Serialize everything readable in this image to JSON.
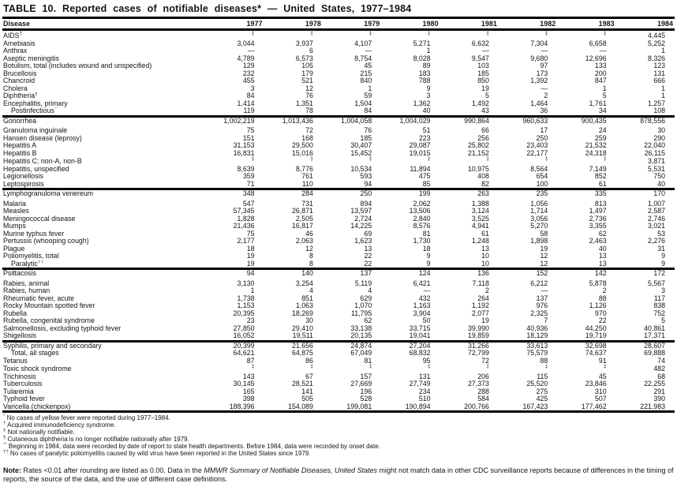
{
  "title": "TABLE 10. Reported cases of notifiable diseases* — United States, 1977–1984",
  "table": {
    "disease_header": "Disease",
    "year_headers": [
      "1977",
      "1978",
      "1979",
      "1980",
      "1981",
      "1982",
      "1983",
      "1984"
    ],
    "groups": [
      {
        "rows": [
          {
            "name": "AIDS",
            "sup": "†",
            "values": [
              "‡",
              "‡",
              "‡",
              "‡",
              "‡",
              "‡",
              "‡",
              "4,445"
            ]
          },
          {
            "name": "Amebiasis",
            "values": [
              "3,044",
              "3,937",
              "4,107",
              "5,271",
              "6,632",
              "7,304",
              "6,658",
              "5,252"
            ]
          },
          {
            "name": "Anthrax",
            "values": [
              "—",
              "6",
              "—",
              "1",
              "—",
              "—",
              "—",
              "1"
            ]
          },
          {
            "name": "Aseptic meningitis",
            "values": [
              "4,789",
              "6,573",
              "8,754",
              "8,028",
              "9,547",
              "9,680",
              "12,696",
              "8,326"
            ]
          },
          {
            "name": "Botulism, total (includes wound and unspecified)",
            "values": [
              "129",
              "105",
              "45",
              "89",
              "103",
              "97",
              "133",
              "123"
            ]
          },
          {
            "name": "Brucellosis",
            "values": [
              "232",
              "179",
              "215",
              "183",
              "185",
              "173",
              "200",
              "131"
            ]
          },
          {
            "name": "Chancroid",
            "values": [
              "455",
              "521",
              "840",
              "788",
              "850",
              "1,392",
              "847",
              "666"
            ]
          },
          {
            "name": "Cholera",
            "values": [
              "3",
              "12",
              "1",
              "9",
              "19",
              "—",
              "1",
              "1"
            ]
          },
          {
            "name": "Diphtheria",
            "sup": "¶",
            "values": [
              "84",
              "76",
              "59",
              "3",
              "5",
              "2",
              "5",
              "1"
            ]
          },
          {
            "name": "Encephalitis, primary",
            "values": [
              "1,414",
              "1,351",
              "1,504",
              "1,362",
              "1,492",
              "1,464",
              "1,761",
              "1,257"
            ]
          },
          {
            "name": "Postinfectious",
            "sup": "**",
            "indent": true,
            "values": [
              "119",
              "78",
              "84",
              "40",
              "43",
              "36",
              "34",
              "108"
            ]
          }
        ]
      },
      {
        "rows": [
          {
            "name": "Gonorrhea",
            "gap_after": true,
            "values": [
              "1,002,219",
              "1,013,436",
              "1,004,058",
              "1,004,029",
              "990,864",
              "960,633",
              "900,435",
              "878,556"
            ]
          },
          {
            "name": "Granuloma inguinale",
            "values": [
              "75",
              "72",
              "76",
              "51",
              "66",
              "17",
              "24",
              "30"
            ]
          },
          {
            "name": "Hansen disease (leprosy)",
            "values": [
              "151",
              "168",
              "185",
              "223",
              "256",
              "250",
              "259",
              "290"
            ]
          },
          {
            "name": "Hepatitis A",
            "values": [
              "31,153",
              "29,500",
              "30,407",
              "29,087",
              "25,802",
              "23,403",
              "21,532",
              "22,040"
            ]
          },
          {
            "name": "Hepatitis B",
            "values": [
              "16,831",
              "15,016",
              "15,452",
              "19,015",
              "21,152",
              "22,177",
              "24,318",
              "26,115"
            ]
          },
          {
            "name": "Hepatitis C; non-A, non-B",
            "values": [
              "‡",
              "‡",
              "‡",
              "‡",
              "‡",
              "‡",
              "‡",
              "3,871"
            ]
          },
          {
            "name": "Hepatitis, unspecified",
            "values": [
              "8,639",
              "8,776",
              "10,534",
              "11,894",
              "10,975",
              "8,564",
              "7,149",
              "5,531"
            ]
          },
          {
            "name": "Legionellosis",
            "values": [
              "359",
              "761",
              "593",
              "475",
              "408",
              "654",
              "852",
              "750"
            ]
          },
          {
            "name": "Leptospirosis",
            "values": [
              "71",
              "110",
              "94",
              "85",
              "82",
              "100",
              "61",
              "40"
            ]
          }
        ]
      },
      {
        "rows": [
          {
            "name": "Lymphogranuloma venereum",
            "gap_after": true,
            "values": [
              "348",
              "284",
              "250",
              "199",
              "263",
              "235",
              "335",
              "170"
            ]
          },
          {
            "name": "Malaria",
            "values": [
              "547",
              "731",
              "894",
              "2,062",
              "1,388",
              "1,056",
              "813",
              "1,007"
            ]
          },
          {
            "name": "Measles",
            "values": [
              "57,345",
              "26,871",
              "13,597",
              "13,506",
              "3,124",
              "1,714",
              "1,497",
              "2,587"
            ]
          },
          {
            "name": "Meningococcal disease",
            "values": [
              "1,828",
              "2,505",
              "2,724",
              "2,840",
              "3,525",
              "3,056",
              "2,736",
              "2,746"
            ]
          },
          {
            "name": "Mumps",
            "values": [
              "21,436",
              "16,817",
              "14,225",
              "8,576",
              "4,941",
              "5,270",
              "3,355",
              "3,021"
            ]
          },
          {
            "name": "Murine typhus fever",
            "values": [
              "75",
              "46",
              "69",
              "81",
              "61",
              "58",
              "62",
              "53"
            ]
          },
          {
            "name": "Pertussis (whooping cough)",
            "values": [
              "2,177",
              "2,063",
              "1,623",
              "1,730",
              "1,248",
              "1,898",
              "2,463",
              "2,276"
            ]
          },
          {
            "name": "Plague",
            "values": [
              "18",
              "12",
              "13",
              "18",
              "13",
              "19",
              "40",
              "31"
            ]
          },
          {
            "name": "Poliomyelitis, total",
            "values": [
              "19",
              "8",
              "22",
              "9",
              "10",
              "12",
              "13",
              "9"
            ]
          },
          {
            "name": "Paralytic",
            "sup": "††",
            "indent": true,
            "values": [
              "19",
              "8",
              "22",
              "9",
              "10",
              "12",
              "13",
              "9"
            ]
          }
        ]
      },
      {
        "rows": [
          {
            "name": "Psittacosis",
            "gap_after": true,
            "values": [
              "94",
              "140",
              "137",
              "124",
              "136",
              "152",
              "142",
              "172"
            ]
          },
          {
            "name": "Rabies, animal",
            "values": [
              "3,130",
              "3,254",
              "5,119",
              "6,421",
              "7,118",
              "6,212",
              "5,878",
              "5,567"
            ]
          },
          {
            "name": "Rabies, human",
            "values": [
              "1",
              "4",
              "4",
              "—",
              "2",
              "—",
              "2",
              "3"
            ]
          },
          {
            "name": "Rheumatic fever, acute",
            "values": [
              "1,738",
              "851",
              "629",
              "432",
              "264",
              "137",
              "88",
              "117"
            ]
          },
          {
            "name": "Rocky Mountain spotted fever",
            "values": [
              "1,153",
              "1,063",
              "1,070",
              "1,163",
              "1,192",
              "976",
              "1,126",
              "838"
            ]
          },
          {
            "name": "Rubella",
            "values": [
              "20,395",
              "18,269",
              "11,795",
              "3,904",
              "2,077",
              "2,325",
              "970",
              "752"
            ]
          },
          {
            "name": "Rubella, congenital syndrome",
            "values": [
              "23",
              "30",
              "62",
              "50",
              "19",
              "7",
              "22",
              "5"
            ]
          },
          {
            "name": "Salmonellosis, excluding typhoid fever",
            "values": [
              "27,850",
              "29,410",
              "33,138",
              "33,715",
              "39,990",
              "40,936",
              "44,250",
              "40,861"
            ]
          },
          {
            "name": "Shigellosis",
            "values": [
              "16,052",
              "19,511",
              "20,135",
              "19,041",
              "19,859",
              "18,129",
              "19,719",
              "17,371"
            ]
          }
        ]
      },
      {
        "rows": [
          {
            "name": "Syphilis, primary and secondary",
            "values": [
              "20,399",
              "21,656",
              "24,874",
              "27,204",
              "31,266",
              "33,613",
              "32,698",
              "28,607"
            ]
          },
          {
            "name": "Total, all stages",
            "indent": true,
            "values": [
              "64,621",
              "64,875",
              "67,049",
              "68,832",
              "72,799",
              "75,579",
              "74,637",
              "69,888"
            ]
          },
          {
            "name": "Tetanus",
            "values": [
              "87",
              "86",
              "81",
              "95",
              "72",
              "88",
              "91",
              "74"
            ]
          },
          {
            "name": "Toxic shock syndrome",
            "values": [
              "‡",
              "‡",
              "‡",
              "‡",
              "‡",
              "‡",
              "‡",
              "482"
            ]
          },
          {
            "name": "Trichinosis",
            "values": [
              "143",
              "67",
              "157",
              "131",
              "206",
              "115",
              "45",
              "68"
            ]
          },
          {
            "name": "Tuberculosis",
            "values": [
              "30,145",
              "28,521",
              "27,669",
              "27,749",
              "27,373",
              "25,520",
              "23,846",
              "22,255"
            ]
          },
          {
            "name": "Tularemia",
            "values": [
              "165",
              "141",
              "196",
              "234",
              "288",
              "275",
              "310",
              "291"
            ]
          },
          {
            "name": "Typhoid fever",
            "values": [
              "398",
              "505",
              "528",
              "510",
              "584",
              "425",
              "507",
              "390"
            ]
          },
          {
            "name": "Varicella (chickenpox)",
            "values": [
              "188,396",
              "154,089",
              "199,081",
              "190,894",
              "200,766",
              "167,423",
              "177,462",
              "221,983"
            ]
          }
        ]
      }
    ]
  },
  "footnotes": [
    {
      "marker": "*",
      "text": "No cases of yellow fever were reported during 1977–1984."
    },
    {
      "marker": "†",
      "text": "Acquired immunodeficiency syndrome."
    },
    {
      "marker": "‡",
      "text": "Not nationally notifiable."
    },
    {
      "marker": "¶",
      "text": "Cutaneous diphtheria is no longer notifiable nationally after 1979."
    },
    {
      "marker": "**",
      "text": "Beginning in 1984, data were recorded by date of report to state health departments.  Before 1984, data were recorded by onset date."
    },
    {
      "marker": "††",
      "text": "No cases of paralytic poliomyelitis caused by wild virus have been reported in the United States since 1979."
    }
  ],
  "note": {
    "label": "Note:",
    "before_italic": " Rates <0.01 after rounding are listed as 0.00. Data in the ",
    "italic": "MMWR Summary of Notifiable Diseases, United States",
    "after_italic": " might not match data in other CDC surveillance reports because of differences in the timing of reports, the source of the data, and the use of different case definitions."
  }
}
